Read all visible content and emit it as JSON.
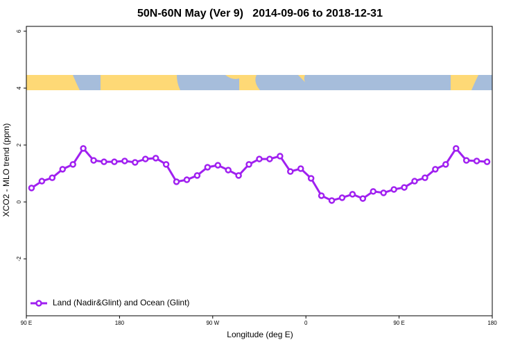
{
  "chart_data": {
    "type": "line",
    "title": "50N-60N May (Ver 9)   2014-09-06 to 2018-12-31",
    "x_label": "Longitude (deg E)",
    "y_label": "XCO2 - MLO trend (ppm)",
    "x": [
      95,
      105,
      115,
      125,
      135,
      145,
      155,
      165,
      175,
      185,
      195,
      205,
      215,
      225,
      235,
      245,
      255,
      265,
      275,
      285,
      295,
      305,
      315,
      325,
      335,
      345,
      355,
      365,
      375,
      385,
      395,
      405,
      415,
      425,
      435,
      445,
      455,
      465,
      475,
      485,
      495,
      505,
      515,
      525,
      535
    ],
    "series": [
      {
        "name": "Land (Nadir&Glint) and Ocean (Glint)",
        "color": "#a020f0",
        "values": [
          0.49,
          0.73,
          0.85,
          1.15,
          1.32,
          1.88,
          1.46,
          1.41,
          1.41,
          1.44,
          1.39,
          1.51,
          1.54,
          1.32,
          0.71,
          0.78,
          0.93,
          1.22,
          1.29,
          1.12,
          0.93,
          1.32,
          1.51,
          1.51,
          1.61,
          1.07,
          1.17,
          0.83,
          0.22,
          0.05,
          0.15,
          0.27,
          0.12,
          0.37,
          0.32,
          0.44,
          0.51,
          0.73,
          0.85,
          1.15,
          1.32,
          1.88,
          1.46,
          1.44,
          1.41
        ]
      }
    ],
    "xlim": [
      90,
      540
    ],
    "xticks": [
      {
        "value": 90,
        "label": "90 E"
      },
      {
        "value": 180,
        "label": "180"
      },
      {
        "value": 270,
        "label": "90 W"
      },
      {
        "value": 360,
        "label": "0"
      },
      {
        "value": 450,
        "label": "90 E"
      },
      {
        "value": 540,
        "label": "180"
      }
    ],
    "ylim": [
      -4,
      6.17
    ],
    "yticks": [
      -2,
      0,
      2,
      4,
      6
    ],
    "legend": "bottom-left"
  }
}
